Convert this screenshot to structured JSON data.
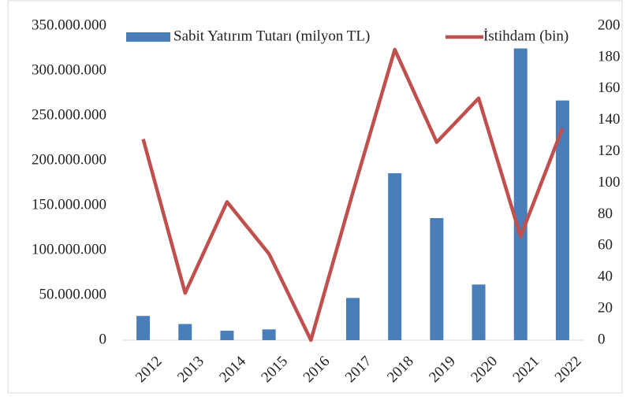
{
  "chart_data": {
    "type": "bar_line",
    "categories": [
      "2012",
      "2013",
      "2014",
      "2015",
      "2016",
      "2017",
      "2018",
      "2019",
      "2020",
      "2021",
      "2022"
    ],
    "series": [
      {
        "name": "Sabit Yatırım Tutarı (milyon TL)",
        "type": "bar",
        "color": "#4a7ebb",
        "values": [
          27000000,
          18000000,
          10500000,
          12000000,
          0,
          47000000,
          186000000,
          136000000,
          62000000,
          325000000,
          267000000
        ]
      },
      {
        "name": "İstihdam (bin)",
        "type": "line",
        "axis": "y2",
        "color": "#c0504d",
        "values": [
          128,
          30,
          88,
          55,
          0,
          94,
          185,
          126,
          154,
          66,
          135
        ]
      }
    ],
    "ylim": [
      0,
      350000000
    ],
    "yticks": [
      0,
      {
        "value": 50000000,
        "label": "50.000.000"
      },
      {
        "value": 100000000,
        "label": "100.000.000"
      },
      {
        "value": 150000000,
        "label": "150.000.000"
      },
      {
        "value": 200000000,
        "label": "200.000.000"
      },
      {
        "value": 250000000,
        "label": "250.000.000"
      },
      {
        "value": 300000000,
        "label": "300.000.000"
      },
      {
        "value": 350000000,
        "label": "350.000.000"
      }
    ],
    "y2lim": [
      0,
      200
    ],
    "y2ticks": [
      0,
      20,
      40,
      60,
      80,
      100,
      120,
      140,
      160,
      180,
      200
    ],
    "legend": "top"
  }
}
